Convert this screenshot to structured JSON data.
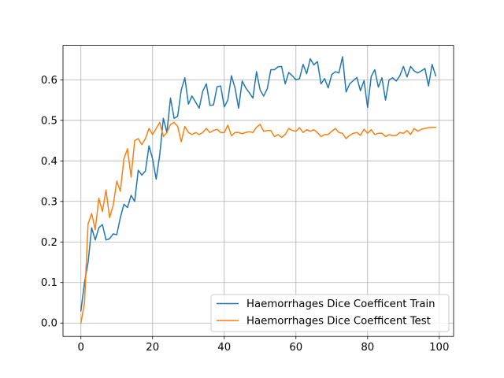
{
  "chart_data": {
    "type": "line",
    "title": "",
    "xlabel": "",
    "ylabel": "",
    "xlim": [
      -5,
      104
    ],
    "ylim": [
      -0.033,
      0.685
    ],
    "xticks": [
      0,
      20,
      40,
      60,
      80,
      100
    ],
    "yticks": [
      0.0,
      0.1,
      0.2,
      0.3,
      0.4,
      0.5,
      0.6
    ],
    "xtick_labels": [
      "0",
      "20",
      "40",
      "60",
      "80",
      "100"
    ],
    "ytick_labels": [
      "0.0",
      "0.1",
      "0.2",
      "0.3",
      "0.4",
      "0.5",
      "0.6"
    ],
    "grid": true,
    "legend_position": "lower-right",
    "x": [
      0,
      1,
      2,
      3,
      4,
      5,
      6,
      7,
      8,
      9,
      10,
      11,
      12,
      13,
      14,
      15,
      16,
      17,
      18,
      19,
      20,
      21,
      22,
      23,
      24,
      25,
      26,
      27,
      28,
      29,
      30,
      31,
      32,
      33,
      34,
      35,
      36,
      37,
      38,
      39,
      40,
      41,
      42,
      43,
      44,
      45,
      46,
      47,
      48,
      49,
      50,
      51,
      52,
      53,
      54,
      55,
      56,
      57,
      58,
      59,
      60,
      61,
      62,
      63,
      64,
      65,
      66,
      67,
      68,
      69,
      70,
      71,
      72,
      73,
      74,
      75,
      76,
      77,
      78,
      79,
      80,
      81,
      82,
      83,
      84,
      85,
      86,
      87,
      88,
      89,
      90,
      91,
      92,
      93,
      94,
      95,
      96,
      97,
      98,
      99
    ],
    "series": [
      {
        "name": "Haemorrhages Dice Coefficent Train",
        "color": "#1f77b4",
        "values": [
          0.03,
          0.1,
          0.15,
          0.235,
          0.205,
          0.235,
          0.243,
          0.205,
          0.208,
          0.22,
          0.218,
          0.26,
          0.293,
          0.285,
          0.315,
          0.3,
          0.377,
          0.365,
          0.375,
          0.437,
          0.405,
          0.355,
          0.415,
          0.505,
          0.47,
          0.555,
          0.505,
          0.51,
          0.575,
          0.605,
          0.54,
          0.56,
          0.545,
          0.53,
          0.572,
          0.59,
          0.537,
          0.538,
          0.583,
          0.585,
          0.533,
          0.55,
          0.61,
          0.58,
          0.53,
          0.597,
          0.58,
          0.568,
          0.555,
          0.62,
          0.575,
          0.56,
          0.578,
          0.625,
          0.625,
          0.632,
          0.633,
          0.59,
          0.618,
          0.61,
          0.6,
          0.603,
          0.638,
          0.615,
          0.652,
          0.637,
          0.645,
          0.59,
          0.603,
          0.58,
          0.613,
          0.62,
          0.617,
          0.657,
          0.57,
          0.59,
          0.598,
          0.606,
          0.573,
          0.598,
          0.532,
          0.608,
          0.625,
          0.582,
          0.605,
          0.55,
          0.6,
          0.605,
          0.597,
          0.61,
          0.633,
          0.607,
          0.633,
          0.622,
          0.617,
          0.622,
          0.628,
          0.585,
          0.638,
          0.61
        ]
      },
      {
        "name": "Haemorrhages Dice Coefficent Test",
        "color": "#ff7f0e",
        "values": [
          0.0,
          0.05,
          0.245,
          0.27,
          0.23,
          0.308,
          0.275,
          0.328,
          0.26,
          0.29,
          0.35,
          0.325,
          0.405,
          0.43,
          0.36,
          0.45,
          0.455,
          0.44,
          0.455,
          0.48,
          0.465,
          0.48,
          0.495,
          0.46,
          0.47,
          0.49,
          0.495,
          0.485,
          0.447,
          0.485,
          0.47,
          0.465,
          0.47,
          0.465,
          0.47,
          0.48,
          0.47,
          0.475,
          0.478,
          0.47,
          0.47,
          0.488,
          0.462,
          0.47,
          0.47,
          0.467,
          0.47,
          0.472,
          0.47,
          0.483,
          0.49,
          0.473,
          0.475,
          0.475,
          0.46,
          0.465,
          0.458,
          0.465,
          0.48,
          0.475,
          0.473,
          0.482,
          0.47,
          0.477,
          0.473,
          0.477,
          0.47,
          0.46,
          0.465,
          0.465,
          0.473,
          0.48,
          0.47,
          0.468,
          0.455,
          0.463,
          0.468,
          0.47,
          0.463,
          0.478,
          0.468,
          0.477,
          0.465,
          0.468,
          0.468,
          0.46,
          0.465,
          0.462,
          0.463,
          0.47,
          0.468,
          0.475,
          0.465,
          0.48,
          0.473,
          0.478,
          0.48,
          0.482,
          0.483,
          0.483
        ]
      }
    ]
  }
}
